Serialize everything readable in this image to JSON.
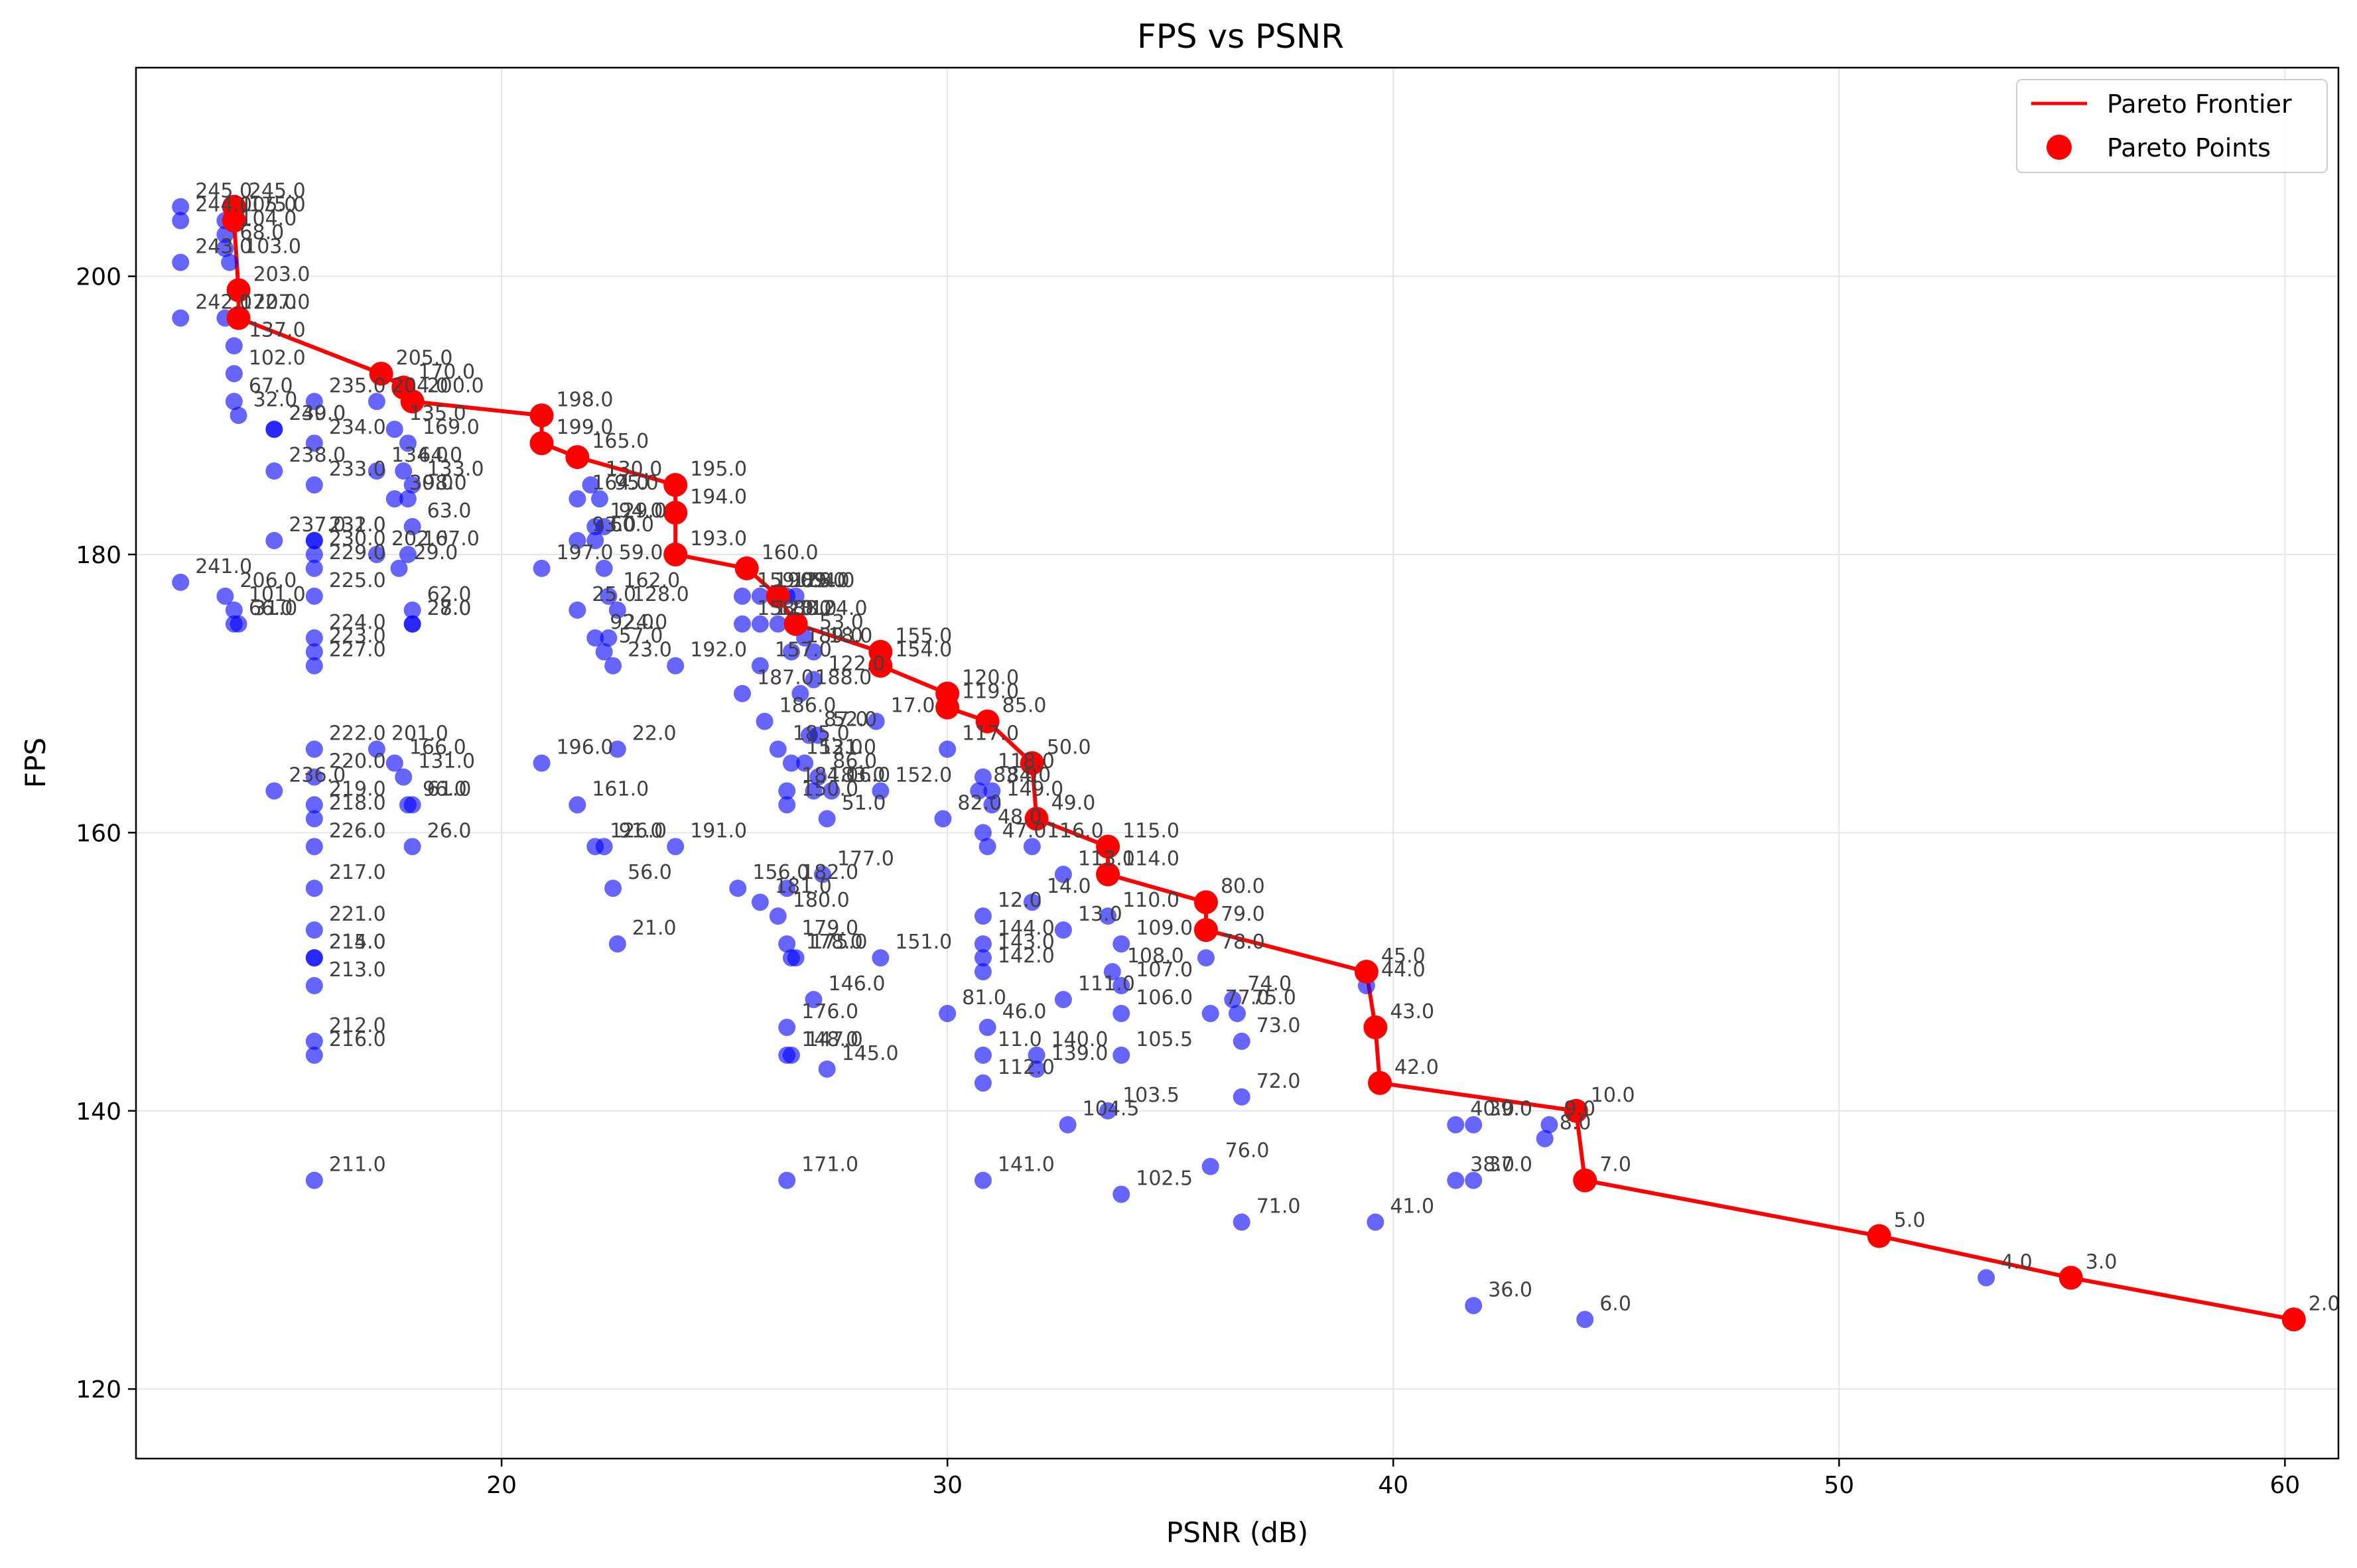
{
  "chart_data": {
    "type": "scatter",
    "title": "FPS vs PSNR",
    "xlabel": "PSNR (dB)",
    "ylabel": "FPS",
    "xlim": [
      11.8,
      61.2
    ],
    "ylim": [
      115,
      215
    ],
    "xticks": [
      20,
      30,
      40,
      50,
      60
    ],
    "yticks": [
      120,
      140,
      160,
      180,
      200
    ],
    "grid": true,
    "legend_position": "top-right",
    "colors": {
      "points": "#0000ff",
      "pareto": "#ff0000",
      "grid": "#e5e5e5"
    },
    "legend": {
      "frontier_label": "Pareto Frontier",
      "points_label": "Pareto Points"
    },
    "pareto": [
      {
        "label": "245.0",
        "x": 14.0,
        "y": 205
      },
      {
        "label": "175.0",
        "x": 14.0,
        "y": 204
      },
      {
        "label": "203.0",
        "x": 14.1,
        "y": 199
      },
      {
        "label": "207.0",
        "x": 14.1,
        "y": 197
      },
      {
        "label": "205.0",
        "x": 17.3,
        "y": 193
      },
      {
        "label": "170.0",
        "x": 17.8,
        "y": 192
      },
      {
        "label": "200.0",
        "x": 18.0,
        "y": 191
      },
      {
        "label": "198.0",
        "x": 20.9,
        "y": 190
      },
      {
        "label": "199.0",
        "x": 20.9,
        "y": 188
      },
      {
        "label": "165.0",
        "x": 21.7,
        "y": 187
      },
      {
        "label": "195.0",
        "x": 23.9,
        "y": 185
      },
      {
        "label": "194.0",
        "x": 23.9,
        "y": 183
      },
      {
        "label": "193.0",
        "x": 23.9,
        "y": 180
      },
      {
        "label": "160.0",
        "x": 25.5,
        "y": 179
      },
      {
        "label": "125.0",
        "x": 26.2,
        "y": 177
      },
      {
        "label": "124.0",
        "x": 26.6,
        "y": 175
      },
      {
        "label": "155.0",
        "x": 28.5,
        "y": 173
      },
      {
        "label": "154.0",
        "x": 28.5,
        "y": 172
      },
      {
        "label": "120.0",
        "x": 30.0,
        "y": 170
      },
      {
        "label": "119.0",
        "x": 30.0,
        "y": 169
      },
      {
        "label": "85.0",
        "x": 30.9,
        "y": 168
      },
      {
        "label": "50.0",
        "x": 31.9,
        "y": 165
      },
      {
        "label": "49.0",
        "x": 32.0,
        "y": 161
      },
      {
        "label": "115.0",
        "x": 33.6,
        "y": 159
      },
      {
        "label": "114.0",
        "x": 33.6,
        "y": 157
      },
      {
        "label": "80.0",
        "x": 35.8,
        "y": 155
      },
      {
        "label": "79.0",
        "x": 35.8,
        "y": 153
      },
      {
        "label": "45.0",
        "x": 39.4,
        "y": 150
      },
      {
        "label": "43.0",
        "x": 39.6,
        "y": 146
      },
      {
        "label": "42.0",
        "x": 39.7,
        "y": 142
      },
      {
        "label": "10.0",
        "x": 44.1,
        "y": 140
      },
      {
        "label": "7.0",
        "x": 44.3,
        "y": 135
      },
      {
        "label": "5.0",
        "x": 50.9,
        "y": 131
      },
      {
        "label": "3.0",
        "x": 55.2,
        "y": 128
      },
      {
        "label": "2.0",
        "x": 60.2,
        "y": 125
      }
    ],
    "points": [
      {
        "label": "245.0",
        "x": 12.8,
        "y": 205
      },
      {
        "label": "244.0",
        "x": 12.8,
        "y": 204
      },
      {
        "label": "243.0",
        "x": 12.8,
        "y": 201
      },
      {
        "label": "242.0",
        "x": 12.8,
        "y": 197
      },
      {
        "label": "241.0",
        "x": 12.8,
        "y": 178
      },
      {
        "label": "105.0",
        "x": 13.8,
        "y": 204
      },
      {
        "label": "104.0",
        "x": 13.8,
        "y": 203
      },
      {
        "label": "68.0",
        "x": 13.8,
        "y": 202
      },
      {
        "label": "103.0",
        "x": 13.9,
        "y": 201
      },
      {
        "label": "172.0",
        "x": 13.8,
        "y": 197
      },
      {
        "label": "137.0",
        "x": 14.0,
        "y": 195
      },
      {
        "label": "102.0",
        "x": 14.0,
        "y": 193
      },
      {
        "label": "67.0",
        "x": 14.0,
        "y": 191
      },
      {
        "label": "32.0",
        "x": 14.1,
        "y": 190
      },
      {
        "label": "206.0",
        "x": 13.8,
        "y": 177
      },
      {
        "label": "101.0",
        "x": 14.0,
        "y": 176
      },
      {
        "label": "66.0",
        "x": 14.0,
        "y": 175
      },
      {
        "label": "31.0",
        "x": 14.1,
        "y": 175
      },
      {
        "label": "240.0",
        "x": 14.9,
        "y": 189
      },
      {
        "label": "239.0",
        "x": 14.9,
        "y": 189
      },
      {
        "label": "238.0",
        "x": 14.9,
        "y": 186
      },
      {
        "label": "237.0",
        "x": 14.9,
        "y": 181
      },
      {
        "label": "236.0",
        "x": 14.9,
        "y": 163
      },
      {
        "label": "235.0",
        "x": 15.8,
        "y": 191
      },
      {
        "label": "234.0",
        "x": 15.8,
        "y": 188
      },
      {
        "label": "233.0",
        "x": 15.8,
        "y": 185
      },
      {
        "label": "232.0",
        "x": 15.8,
        "y": 181
      },
      {
        "label": "231.0",
        "x": 15.8,
        "y": 181
      },
      {
        "label": "230.0",
        "x": 15.8,
        "y": 180
      },
      {
        "label": "229.0",
        "x": 15.8,
        "y": 179
      },
      {
        "label": "225.0",
        "x": 15.8,
        "y": 177
      },
      {
        "label": "224.0",
        "x": 15.8,
        "y": 174
      },
      {
        "label": "223.0",
        "x": 15.8,
        "y": 173
      },
      {
        "label": "227.0",
        "x": 15.8,
        "y": 172
      },
      {
        "label": "222.0",
        "x": 15.8,
        "y": 166
      },
      {
        "label": "220.0",
        "x": 15.8,
        "y": 164
      },
      {
        "label": "219.0",
        "x": 15.8,
        "y": 162
      },
      {
        "label": "218.0",
        "x": 15.8,
        "y": 161
      },
      {
        "label": "226.0",
        "x": 15.8,
        "y": 159
      },
      {
        "label": "217.0",
        "x": 15.8,
        "y": 156
      },
      {
        "label": "221.0",
        "x": 15.8,
        "y": 153
      },
      {
        "label": "215.0",
        "x": 15.8,
        "y": 151
      },
      {
        "label": "214.0",
        "x": 15.8,
        "y": 151
      },
      {
        "label": "213.0",
        "x": 15.8,
        "y": 149
      },
      {
        "label": "212.0",
        "x": 15.8,
        "y": 145
      },
      {
        "label": "216.0",
        "x": 15.8,
        "y": 144
      },
      {
        "label": "211.0",
        "x": 15.8,
        "y": 135
      },
      {
        "label": "204.0",
        "x": 17.2,
        "y": 191
      },
      {
        "label": "135.0",
        "x": 17.6,
        "y": 189
      },
      {
        "label": "169.0",
        "x": 17.9,
        "y": 188
      },
      {
        "label": "134.0",
        "x": 17.2,
        "y": 186
      },
      {
        "label": "64.0",
        "x": 17.8,
        "y": 186
      },
      {
        "label": "133.0",
        "x": 18.0,
        "y": 185
      },
      {
        "label": "98.0",
        "x": 17.9,
        "y": 184
      },
      {
        "label": "30.0",
        "x": 17.6,
        "y": 184
      },
      {
        "label": "63.0",
        "x": 18.0,
        "y": 182
      },
      {
        "label": "202.0",
        "x": 17.2,
        "y": 180
      },
      {
        "label": "29.0",
        "x": 17.7,
        "y": 179
      },
      {
        "label": "167.0",
        "x": 17.9,
        "y": 180
      },
      {
        "label": "62.0",
        "x": 18.0,
        "y": 176
      },
      {
        "label": "28.0",
        "x": 18.0,
        "y": 175
      },
      {
        "label": "27.0",
        "x": 18.0,
        "y": 175
      },
      {
        "label": "201.0",
        "x": 17.2,
        "y": 166
      },
      {
        "label": "166.0",
        "x": 17.6,
        "y": 165
      },
      {
        "label": "131.0",
        "x": 17.8,
        "y": 164
      },
      {
        "label": "96.0",
        "x": 17.9,
        "y": 162
      },
      {
        "label": "61.0",
        "x": 18.0,
        "y": 162
      },
      {
        "label": "26.0",
        "x": 18.0,
        "y": 159
      },
      {
        "label": "197.0",
        "x": 20.9,
        "y": 179
      },
      {
        "label": "196.0",
        "x": 20.9,
        "y": 165
      },
      {
        "label": "164.0",
        "x": 21.7,
        "y": 184
      },
      {
        "label": "130.0",
        "x": 22.0,
        "y": 185
      },
      {
        "label": "129.0",
        "x": 22.1,
        "y": 182
      },
      {
        "label": "95.0",
        "x": 22.2,
        "y": 184
      },
      {
        "label": "94.0",
        "x": 22.3,
        "y": 182
      },
      {
        "label": "60.0",
        "x": 22.1,
        "y": 181
      },
      {
        "label": "93.0",
        "x": 21.7,
        "y": 181
      },
      {
        "label": "59.0",
        "x": 22.3,
        "y": 179
      },
      {
        "label": "162.0",
        "x": 22.4,
        "y": 177
      },
      {
        "label": "25.0",
        "x": 21.7,
        "y": 176
      },
      {
        "label": "128.0",
        "x": 22.6,
        "y": 176
      },
      {
        "label": "24.0",
        "x": 22.4,
        "y": 174
      },
      {
        "label": "92.0",
        "x": 22.1,
        "y": 174
      },
      {
        "label": "57.0",
        "x": 22.3,
        "y": 173
      },
      {
        "label": "23.0",
        "x": 22.5,
        "y": 172
      },
      {
        "label": "22.0",
        "x": 22.6,
        "y": 166
      },
      {
        "label": "161.0",
        "x": 21.7,
        "y": 162
      },
      {
        "label": "126.0",
        "x": 22.1,
        "y": 159
      },
      {
        "label": "91.0",
        "x": 22.3,
        "y": 159
      },
      {
        "label": "56.0",
        "x": 22.5,
        "y": 156
      },
      {
        "label": "21.0",
        "x": 22.6,
        "y": 152
      },
      {
        "label": "192.0",
        "x": 23.9,
        "y": 172
      },
      {
        "label": "191.0",
        "x": 23.9,
        "y": 159
      },
      {
        "label": "159.0",
        "x": 25.4,
        "y": 177
      },
      {
        "label": "190.0",
        "x": 25.8,
        "y": 177
      },
      {
        "label": "89.0",
        "x": 26.4,
        "y": 177
      },
      {
        "label": "54.0",
        "x": 26.6,
        "y": 177
      },
      {
        "label": "158.0",
        "x": 25.4,
        "y": 175
      },
      {
        "label": "123.0",
        "x": 25.8,
        "y": 175
      },
      {
        "label": "88.0",
        "x": 26.2,
        "y": 175
      },
      {
        "label": "53.0",
        "x": 26.8,
        "y": 174
      },
      {
        "label": "18.0",
        "x": 27.0,
        "y": 173
      },
      {
        "label": "189.0",
        "x": 26.5,
        "y": 173
      },
      {
        "label": "157.0",
        "x": 25.8,
        "y": 172
      },
      {
        "label": "122.0",
        "x": 27.0,
        "y": 171
      },
      {
        "label": "187.0",
        "x": 25.4,
        "y": 170
      },
      {
        "label": "188.0",
        "x": 26.7,
        "y": 170
      },
      {
        "label": "186.0",
        "x": 25.9,
        "y": 168
      },
      {
        "label": "87.0",
        "x": 26.9,
        "y": 167
      },
      {
        "label": "52.0",
        "x": 27.1,
        "y": 167
      },
      {
        "label": "17.0",
        "x": 28.4,
        "y": 168
      },
      {
        "label": "185.0",
        "x": 26.2,
        "y": 166
      },
      {
        "label": "152.0",
        "x": 28.5,
        "y": 163
      },
      {
        "label": "153.0",
        "x": 26.5,
        "y": 165
      },
      {
        "label": "121.0",
        "x": 26.8,
        "y": 165
      },
      {
        "label": "86.0",
        "x": 27.1,
        "y": 164
      },
      {
        "label": "184.0",
        "x": 26.4,
        "y": 163
      },
      {
        "label": "183.0",
        "x": 27.0,
        "y": 163
      },
      {
        "label": "150.0",
        "x": 26.4,
        "y": 162
      },
      {
        "label": "51.0",
        "x": 27.3,
        "y": 161
      },
      {
        "label": "16.0",
        "x": 27.4,
        "y": 163
      },
      {
        "label": "156.0",
        "x": 25.3,
        "y": 156
      },
      {
        "label": "182.0",
        "x": 26.4,
        "y": 156
      },
      {
        "label": "181.0",
        "x": 25.8,
        "y": 155
      },
      {
        "label": "180.0",
        "x": 26.2,
        "y": 154
      },
      {
        "label": "179.0",
        "x": 26.4,
        "y": 152
      },
      {
        "label": "178.0",
        "x": 26.5,
        "y": 151
      },
      {
        "label": "177.0",
        "x": 27.2,
        "y": 157
      },
      {
        "label": "176.0",
        "x": 26.4,
        "y": 146
      },
      {
        "label": "148.0",
        "x": 26.4,
        "y": 144
      },
      {
        "label": "147.0",
        "x": 26.5,
        "y": 144
      },
      {
        "label": "146.0",
        "x": 27.0,
        "y": 148
      },
      {
        "label": "145.0",
        "x": 27.3,
        "y": 143
      },
      {
        "label": "175.0",
        "x": 26.6,
        "y": 151
      },
      {
        "label": "151.0",
        "x": 28.5,
        "y": 151
      },
      {
        "label": "171.0",
        "x": 26.4,
        "y": 135
      },
      {
        "label": "117.0",
        "x": 30.0,
        "y": 166
      },
      {
        "label": "118.0",
        "x": 30.8,
        "y": 164
      },
      {
        "label": "84.0",
        "x": 31.0,
        "y": 163
      },
      {
        "label": "83.0",
        "x": 30.7,
        "y": 163
      },
      {
        "label": "149.0",
        "x": 31.0,
        "y": 162
      },
      {
        "label": "82.0",
        "x": 29.9,
        "y": 161
      },
      {
        "label": "48.0",
        "x": 30.8,
        "y": 160
      },
      {
        "label": "47.0",
        "x": 30.9,
        "y": 159
      },
      {
        "label": "116.0",
        "x": 31.9,
        "y": 159
      },
      {
        "label": "113.0",
        "x": 32.6,
        "y": 157
      },
      {
        "label": "12.0",
        "x": 30.8,
        "y": 154
      },
      {
        "label": "14.0",
        "x": 31.9,
        "y": 155
      },
      {
        "label": "13.0",
        "x": 32.6,
        "y": 153
      },
      {
        "label": "144.0",
        "x": 30.8,
        "y": 152
      },
      {
        "label": "143.0",
        "x": 30.8,
        "y": 151
      },
      {
        "label": "142.0",
        "x": 30.8,
        "y": 150
      },
      {
        "label": "81.0",
        "x": 30.0,
        "y": 147
      },
      {
        "label": "46.0",
        "x": 30.9,
        "y": 146
      },
      {
        "label": "11.0",
        "x": 30.8,
        "y": 144
      },
      {
        "label": "112.0",
        "x": 30.8,
        "y": 142
      },
      {
        "label": "141.0",
        "x": 30.8,
        "y": 135
      },
      {
        "label": "140.0",
        "x": 32.0,
        "y": 144
      },
      {
        "label": "139.0",
        "x": 32.0,
        "y": 143
      },
      {
        "label": "110.0",
        "x": 33.6,
        "y": 154
      },
      {
        "label": "109.0",
        "x": 33.9,
        "y": 152
      },
      {
        "label": "108.0",
        "x": 33.7,
        "y": 150
      },
      {
        "label": "107.0",
        "x": 33.9,
        "y": 149
      },
      {
        "label": "111.0",
        "x": 32.6,
        "y": 148
      },
      {
        "label": "106.0",
        "x": 33.9,
        "y": 147
      },
      {
        "label": "105.5",
        "x": 33.9,
        "y": 144
      },
      {
        "label": "104.5",
        "x": 32.7,
        "y": 139
      },
      {
        "label": "103.5",
        "x": 33.6,
        "y": 140
      },
      {
        "label": "102.5",
        "x": 33.9,
        "y": 134
      },
      {
        "label": "78.0",
        "x": 35.8,
        "y": 151
      },
      {
        "label": "77.0",
        "x": 35.9,
        "y": 147
      },
      {
        "label": "74.0",
        "x": 36.4,
        "y": 148
      },
      {
        "label": "75.0",
        "x": 36.5,
        "y": 147
      },
      {
        "label": "73.0",
        "x": 36.6,
        "y": 145
      },
      {
        "label": "72.0",
        "x": 36.6,
        "y": 141
      },
      {
        "label": "76.0",
        "x": 35.9,
        "y": 136
      },
      {
        "label": "71.0",
        "x": 36.6,
        "y": 132
      },
      {
        "label": "44.0",
        "x": 39.4,
        "y": 149
      },
      {
        "label": "41.0",
        "x": 39.6,
        "y": 132
      },
      {
        "label": "40.0",
        "x": 41.4,
        "y": 139
      },
      {
        "label": "39.0",
        "x": 41.8,
        "y": 139
      },
      {
        "label": "38.0",
        "x": 41.4,
        "y": 135
      },
      {
        "label": "37.0",
        "x": 41.8,
        "y": 135
      },
      {
        "label": "36.0",
        "x": 41.8,
        "y": 126
      },
      {
        "label": "9.0",
        "x": 43.5,
        "y": 139
      },
      {
        "label": "8.0",
        "x": 43.4,
        "y": 138
      },
      {
        "label": "6.0",
        "x": 44.3,
        "y": 125
      },
      {
        "label": "4.0",
        "x": 53.3,
        "y": 128
      }
    ]
  }
}
